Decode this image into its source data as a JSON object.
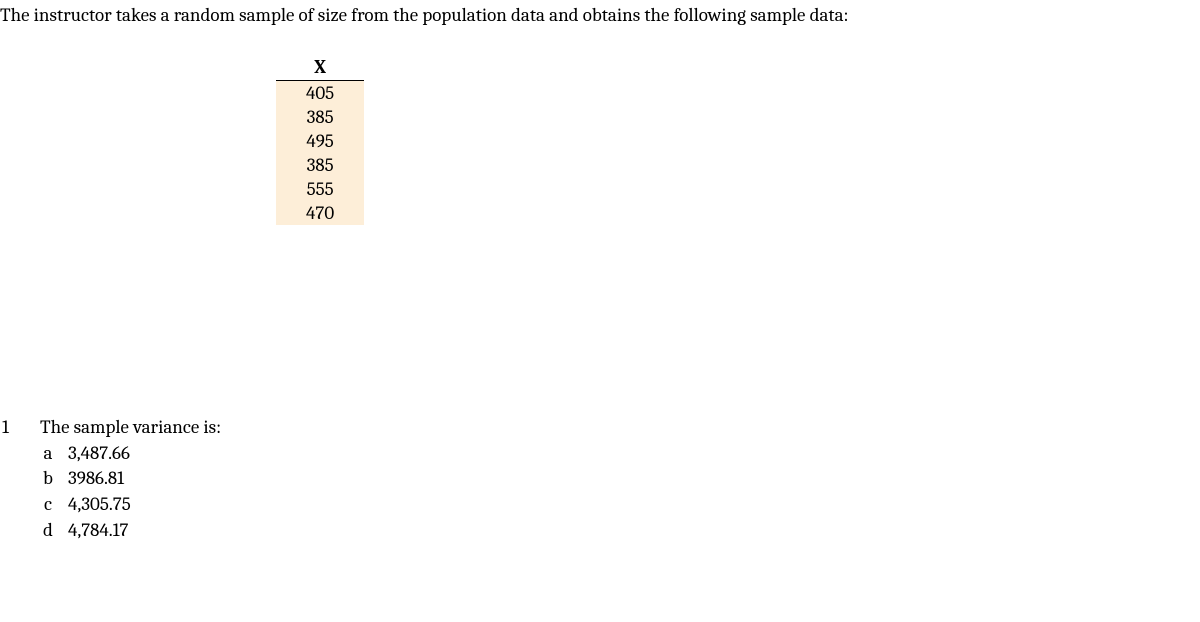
{
  "intro_text": "The instructor takes a random sample of size from the population data and obtains the following sample data:",
  "table": {
    "header": "X",
    "values": [
      "405",
      "385",
      "495",
      "385",
      "555",
      "470"
    ],
    "highlight_color": "#fdeed8",
    "border_color": "#000000"
  },
  "question": {
    "number": "1",
    "prompt": "The sample variance is:",
    "options": [
      {
        "label": "a",
        "value": "3,487.66"
      },
      {
        "label": "b",
        "value": "3986.81"
      },
      {
        "label": "c",
        "value": "4,305.75"
      },
      {
        "label": "d",
        "value": "4,784.17"
      }
    ]
  }
}
